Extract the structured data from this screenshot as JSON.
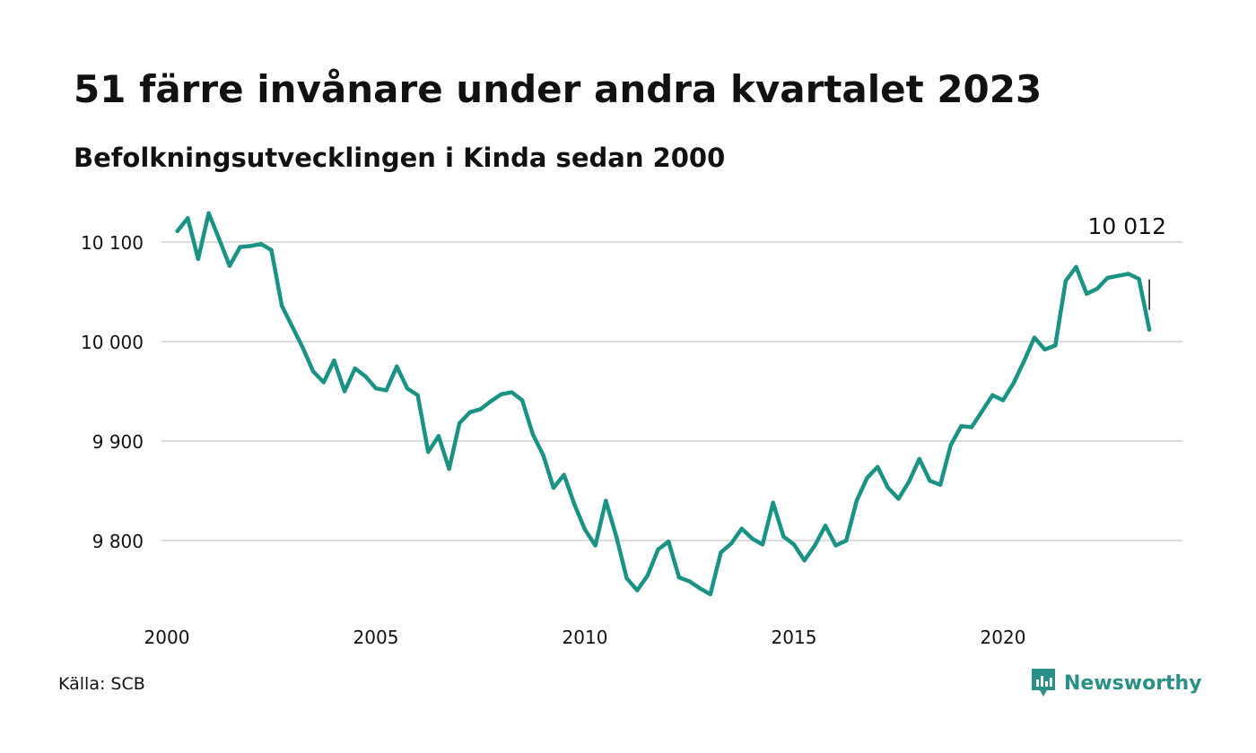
{
  "title": "51 färre invånare under andra kvartalet 2023",
  "subtitle": "Befolkningsutvecklingen i Kinda sedan 2000",
  "source": "Källa: SCB",
  "brand": {
    "name": "Newsworthy",
    "logo_icon": "newsworthy-logo-icon",
    "color": "#2a8f86"
  },
  "colors": {
    "line": "#1a9384",
    "grid": "#dddddd",
    "text": "#111111"
  },
  "chart_data": {
    "type": "line",
    "title": "51 färre invånare under andra kvartalet 2023",
    "subtitle": "Befolkningsutvecklingen i Kinda sedan 2000",
    "xlabel": "",
    "ylabel": "",
    "xlim": [
      2000,
      2024
    ],
    "ylim": [
      9730,
      10120
    ],
    "x_ticks": [
      2000,
      2005,
      2010,
      2015,
      2020
    ],
    "x_tick_labels": [
      "2000",
      "2005",
      "2010",
      "2015",
      "2020"
    ],
    "y_ticks": [
      9800,
      9900,
      10000,
      10100
    ],
    "y_tick_labels": [
      "9 800",
      "9 900",
      "10 000",
      "10 100"
    ],
    "grid": "horizontal",
    "legend": "none",
    "end_label": "10 012",
    "series": [
      {
        "x": [
          2000.25,
          2000.5,
          2000.75,
          2001.0,
          2001.25,
          2001.5,
          2001.75,
          2002.0,
          2002.25,
          2002.5,
          2002.75,
          2003.0,
          2003.25,
          2003.5,
          2003.75,
          2004.0,
          2004.25,
          2004.5,
          2004.75,
          2005.0,
          2005.25,
          2005.5,
          2005.75,
          2006.0,
          2006.25,
          2006.5,
          2006.75,
          2007.0,
          2007.25,
          2007.5,
          2007.75,
          2008.0,
          2008.25,
          2008.5,
          2008.75,
          2009.0,
          2009.25,
          2009.5,
          2009.75,
          2010.0,
          2010.25,
          2010.5,
          2010.75,
          2011.0,
          2011.25,
          2011.5,
          2011.75,
          2012.0,
          2012.25,
          2012.5,
          2012.75,
          2013.0,
          2013.25,
          2013.5,
          2013.75,
          2014.0,
          2014.25,
          2014.5,
          2014.75,
          2015.0,
          2015.25,
          2015.5,
          2015.75,
          2016.0,
          2016.25,
          2016.5,
          2016.75,
          2017.0,
          2017.25,
          2017.5,
          2017.75,
          2018.0,
          2018.25,
          2018.5,
          2018.75,
          2019.0,
          2019.25,
          2019.5,
          2019.75,
          2020.0,
          2020.25,
          2020.5,
          2020.75,
          2021.0,
          2021.25,
          2021.5,
          2021.75,
          2022.0,
          2022.25,
          2022.5,
          2022.75,
          2023.0,
          2023.25,
          2023.5
        ],
        "values": [
          10111,
          10124,
          10083,
          10129,
          10103,
          10076,
          10095,
          10096,
          10098,
          10092,
          10036,
          10015,
          9994,
          9970,
          9959,
          9981,
          9950,
          9973,
          9965,
          9953,
          9951,
          9975,
          9953,
          9946,
          9889,
          9905,
          9872,
          9918,
          9929,
          9932,
          9940,
          9947,
          9949,
          9941,
          9907,
          9886,
          9853,
          9866,
          9836,
          9811,
          9795,
          9840,
          9804,
          9762,
          9750,
          9765,
          9791,
          9799,
          9763,
          9759,
          9752,
          9746,
          9788,
          9797,
          9812,
          9802,
          9796,
          9838,
          9804,
          9796,
          9780,
          9795,
          9815,
          9795,
          9800,
          9840,
          9863,
          9874,
          9853,
          9842,
          9859,
          9882,
          9860,
          9856,
          9896,
          9915,
          9914,
          9930,
          9946,
          9941,
          9958,
          9980,
          10004,
          9992,
          9996,
          10061,
          10075,
          10048,
          10053,
          10064,
          10066,
          10068,
          10063,
          10012
        ]
      }
    ]
  }
}
